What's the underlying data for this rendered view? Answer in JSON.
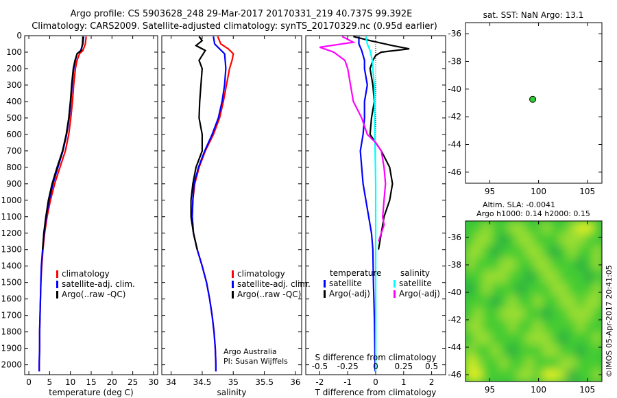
{
  "header": {
    "line1": "Argo profile: CS 5903628_248 29-Mar-2017 20170331_219 40.737S 99.392E",
    "line2": "Climatology: CARS2009. Satellite-adjusted climatology: synTS_20170329.nc (0.95d earlier)"
  },
  "colors": {
    "climatology": "#ff0000",
    "satellite": "#0000ff",
    "argo": "#000000",
    "salinity_satellite": "#00ffff",
    "salinity_argo": "#ff00ff",
    "marker": "#33cc33"
  },
  "chart_data": [
    {
      "type": "line",
      "id": "temperature",
      "xlabel": "temperature (deg C)",
      "ylabel": "",
      "xlim": [
        -1,
        31
      ],
      "ylim": [
        2060,
        0
      ],
      "xticks": [
        0,
        5,
        10,
        15,
        20,
        25,
        30
      ],
      "yticks": [
        0,
        100,
        200,
        300,
        400,
        500,
        600,
        700,
        800,
        900,
        1000,
        1100,
        1200,
        1300,
        1400,
        1500,
        1600,
        1700,
        1800,
        1900,
        2000
      ],
      "legend": [
        "climatology",
        "satellite-adj. clim.",
        "Argo(..raw -QC)"
      ],
      "legend_placement": "center-right",
      "series": [
        {
          "color_key": "climatology",
          "depth": [
            5,
            50,
            90,
            110,
            150,
            200,
            300,
            400,
            500,
            600,
            700,
            800,
            900,
            1000,
            1100,
            1200,
            1300,
            1400,
            1500,
            1600,
            1700,
            1800,
            1900,
            2000,
            2040
          ],
          "values": [
            13.8,
            13.6,
            13.0,
            12.2,
            11.6,
            11.2,
            10.8,
            10.5,
            10.1,
            9.6,
            8.8,
            7.5,
            6.2,
            5.2,
            4.4,
            3.8,
            3.4,
            3.1,
            2.9,
            2.8,
            2.7,
            2.6,
            2.6,
            2.5,
            2.5
          ]
        },
        {
          "color_key": "satellite",
          "depth": [
            5,
            50,
            90,
            110,
            150,
            200,
            300,
            400,
            500,
            600,
            700,
            800,
            900,
            1000,
            1100,
            1200,
            1300,
            1400,
            1500,
            1600,
            1700,
            1800,
            1900,
            2000,
            2040
          ],
          "values": [
            13.2,
            13.0,
            12.5,
            11.6,
            11.2,
            10.8,
            10.4,
            10.1,
            9.7,
            9.1,
            8.2,
            7.0,
            5.8,
            4.9,
            4.2,
            3.7,
            3.3,
            3.0,
            2.9,
            2.8,
            2.7,
            2.6,
            2.6,
            2.5,
            2.5
          ]
        },
        {
          "color_key": "argo",
          "depth": [
            5,
            50,
            90,
            110,
            150,
            200,
            300,
            400,
            500,
            600,
            700,
            800,
            900,
            1000,
            1100,
            1200,
            1300
          ],
          "values": [
            13.0,
            12.9,
            12.6,
            11.6,
            11.1,
            10.7,
            10.3,
            10.0,
            9.6,
            9.0,
            8.1,
            6.8,
            5.6,
            4.7,
            4.1,
            3.6,
            3.3
          ]
        }
      ]
    },
    {
      "type": "line",
      "id": "salinity",
      "xlabel": "salinity",
      "ylabel": "",
      "xlim": [
        33.85,
        36.1
      ],
      "ylim": [
        2060,
        0
      ],
      "xticks": [
        34,
        34.5,
        35,
        35.5,
        36
      ],
      "legend": [
        "climatology",
        "satellite-adj. clim.",
        "Argo(..raw -QC)"
      ],
      "legend_placement": "center-right",
      "annotation": [
        "Argo Australia",
        "PI: Susan Wijffels"
      ],
      "series": [
        {
          "color_key": "climatology",
          "depth": [
            5,
            50,
            80,
            110,
            150,
            200,
            300,
            400,
            500,
            600,
            700,
            800,
            900,
            1000,
            1100,
            1200,
            1300,
            1400,
            1500,
            1600,
            1700,
            1800,
            1900,
            2000,
            2040
          ],
          "values": [
            34.75,
            34.8,
            34.92,
            35.0,
            34.98,
            34.94,
            34.89,
            34.84,
            34.78,
            34.68,
            34.55,
            34.45,
            34.38,
            34.35,
            34.34,
            34.36,
            34.42,
            34.5,
            34.57,
            34.62,
            34.66,
            34.69,
            34.71,
            34.72,
            34.72
          ]
        },
        {
          "color_key": "satellite",
          "depth": [
            5,
            50,
            80,
            110,
            150,
            200,
            300,
            400,
            500,
            600,
            700,
            800,
            900,
            1000,
            1100,
            1200,
            1300,
            1400,
            1500,
            1600,
            1700,
            1800,
            1900,
            2000,
            2040
          ],
          "values": [
            34.68,
            34.7,
            34.78,
            34.86,
            34.87,
            34.88,
            34.86,
            34.82,
            34.76,
            34.66,
            34.54,
            34.44,
            34.37,
            34.35,
            34.34,
            34.36,
            34.42,
            34.5,
            34.57,
            34.62,
            34.66,
            34.69,
            34.71,
            34.72,
            34.72
          ]
        },
        {
          "color_key": "argo",
          "depth": [
            5,
            30,
            60,
            90,
            120,
            150,
            200,
            300,
            400,
            500,
            600,
            700,
            800,
            900,
            1000,
            1100,
            1200,
            1300
          ],
          "values": [
            34.45,
            34.5,
            34.4,
            34.55,
            34.5,
            34.45,
            34.5,
            34.48,
            34.46,
            34.45,
            34.5,
            34.5,
            34.4,
            34.35,
            34.32,
            34.32,
            34.36,
            34.42
          ]
        }
      ]
    },
    {
      "type": "line",
      "id": "difference",
      "xlabel": "T difference from climatology",
      "xlabel2": "S difference from climatology",
      "xlim": [
        -2.5,
        2.5
      ],
      "ylim": [
        2060,
        0
      ],
      "xticks": [
        -2,
        -1,
        0,
        1,
        2
      ],
      "xticklabels2": [
        "-0.5",
        "-0.25",
        "0",
        "0.25",
        "0.5"
      ],
      "xticks2_positions": [
        -2,
        -1,
        0,
        1,
        2
      ],
      "legend_headers": [
        "temperature",
        "salinity"
      ],
      "legend": [
        "satellite",
        "Argo(-adj)",
        "satellite",
        "Argo(-adj)"
      ],
      "legend_placement": "center",
      "series": [
        {
          "group": "temperature",
          "color_key": "satellite",
          "depth": [
            5,
            50,
            90,
            150,
            200,
            300,
            400,
            500,
            600,
            700,
            800,
            900,
            1000,
            1100,
            1200,
            1300,
            1500,
            1700,
            1900,
            2040
          ],
          "values": [
            -0.6,
            -0.6,
            -0.5,
            -0.4,
            -0.4,
            -0.3,
            -0.4,
            -0.4,
            -0.45,
            -0.55,
            -0.5,
            -0.45,
            -0.35,
            -0.25,
            -0.15,
            -0.1,
            -0.08,
            -0.05,
            -0.03,
            -0.02
          ]
        },
        {
          "group": "temperature",
          "color_key": "argo",
          "depth": [
            5,
            30,
            60,
            80,
            100,
            120,
            150,
            200,
            300,
            400,
            500,
            600,
            700,
            800,
            900,
            1000,
            1100,
            1200,
            1300
          ],
          "values": [
            -0.8,
            -0.2,
            0.6,
            1.2,
            0.2,
            0.0,
            -0.1,
            -0.2,
            -0.1,
            -0.05,
            -0.15,
            -0.2,
            0.2,
            0.5,
            0.6,
            0.5,
            0.3,
            0.2,
            0.1
          ]
        },
        {
          "group": "salinity",
          "color_key": "salinity_satellite",
          "depth": [
            5,
            50,
            90,
            150,
            200,
            300,
            400,
            500,
            600,
            700,
            800,
            900,
            1000,
            1100,
            1200,
            1300,
            1500,
            1700,
            1900,
            2040
          ],
          "values": [
            -0.35,
            -0.3,
            -0.2,
            -0.12,
            -0.1,
            -0.05,
            -0.04,
            -0.04,
            -0.03,
            -0.02,
            -0.01,
            0.0,
            0.0,
            0.0,
            0.0,
            0.0,
            0.0,
            0.0,
            0.0,
            0.0
          ]
        },
        {
          "group": "salinity",
          "color_key": "salinity_argo",
          "depth": [
            5,
            40,
            70,
            100,
            150,
            200,
            300,
            400,
            500,
            600,
            650,
            700,
            800,
            900,
            1000,
            1100,
            1150,
            1200,
            1250
          ],
          "values": [
            -1.2,
            -0.8,
            -2.0,
            -1.5,
            -1.1,
            -1.0,
            -0.9,
            -0.8,
            -0.5,
            -0.3,
            0.0,
            0.2,
            0.3,
            0.35,
            0.3,
            0.25,
            0.3,
            0.2,
            0.1
          ]
        }
      ]
    },
    {
      "type": "scatter",
      "id": "location",
      "title": "sat. SST: NaN Argo: 13.1",
      "xlim": [
        92.5,
        106.5
      ],
      "ylim": [
        -46.8,
        -35.2
      ],
      "xticks": [
        95,
        100,
        105
      ],
      "yticks": [
        -36,
        -38,
        -40,
        -42,
        -44,
        -46
      ],
      "points": [
        {
          "x": 99.4,
          "y": -40.74
        }
      ]
    },
    {
      "type": "heatmap",
      "id": "altimetry",
      "title_line1": "Altim. SLA: -0.0041",
      "title_line2": "Argo h1000: 0.14 h2000: 0.15",
      "xlim": [
        92.5,
        106.5
      ],
      "ylim": [
        -46.5,
        -34.8
      ],
      "xticks": [
        95,
        100,
        105
      ],
      "yticks": [
        -36,
        -38,
        -40,
        -42,
        -44,
        -46
      ],
      "colormap": [
        "#1a8a6a",
        "#22aa44",
        "#44cc33",
        "#99dd33",
        "#ddee22"
      ],
      "cell_values": [
        [
          2,
          2,
          3,
          2,
          2,
          3,
          3,
          2,
          2,
          3,
          2,
          2,
          3,
          4,
          4,
          2
        ],
        [
          2,
          3,
          3,
          2,
          1,
          2,
          3,
          3,
          2,
          2,
          2,
          3,
          3,
          3,
          2,
          2
        ],
        [
          3,
          3,
          2,
          1,
          2,
          2,
          2,
          3,
          3,
          2,
          1,
          2,
          3,
          2,
          2,
          3
        ],
        [
          3,
          2,
          2,
          2,
          3,
          3,
          2,
          2,
          3,
          3,
          2,
          2,
          2,
          1,
          2,
          3
        ],
        [
          2,
          2,
          3,
          3,
          3,
          2,
          2,
          1,
          2,
          3,
          3,
          2,
          2,
          2,
          1,
          2
        ],
        [
          1,
          2,
          3,
          2,
          2,
          2,
          1,
          2,
          2,
          2,
          3,
          3,
          2,
          2,
          2,
          3
        ],
        [
          2,
          2,
          2,
          1,
          2,
          3,
          2,
          2,
          3,
          2,
          2,
          3,
          3,
          2,
          3,
          3
        ],
        [
          2,
          3,
          2,
          2,
          3,
          3,
          3,
          2,
          2,
          1,
          2,
          2,
          3,
          3,
          3,
          2
        ],
        [
          3,
          3,
          2,
          2,
          2,
          3,
          2,
          2,
          3,
          2,
          2,
          2,
          2,
          3,
          2,
          2
        ],
        [
          2,
          3,
          3,
          2,
          2,
          2,
          2,
          3,
          3,
          3,
          2,
          1,
          2,
          2,
          2,
          3
        ],
        [
          3,
          2,
          2,
          3,
          2,
          1,
          2,
          2,
          2,
          3,
          3,
          2,
          2,
          1,
          2,
          2
        ],
        [
          4,
          3,
          2,
          2,
          3,
          2,
          2,
          3,
          2,
          2,
          2,
          3,
          3,
          2,
          2,
          2
        ],
        [
          4,
          4,
          2,
          2,
          2,
          2,
          3,
          3,
          2,
          4,
          4,
          3,
          1,
          2,
          2,
          3
        ]
      ]
    }
  ],
  "watermark": "©IMOS 05-Apr-2017 20:41:05"
}
